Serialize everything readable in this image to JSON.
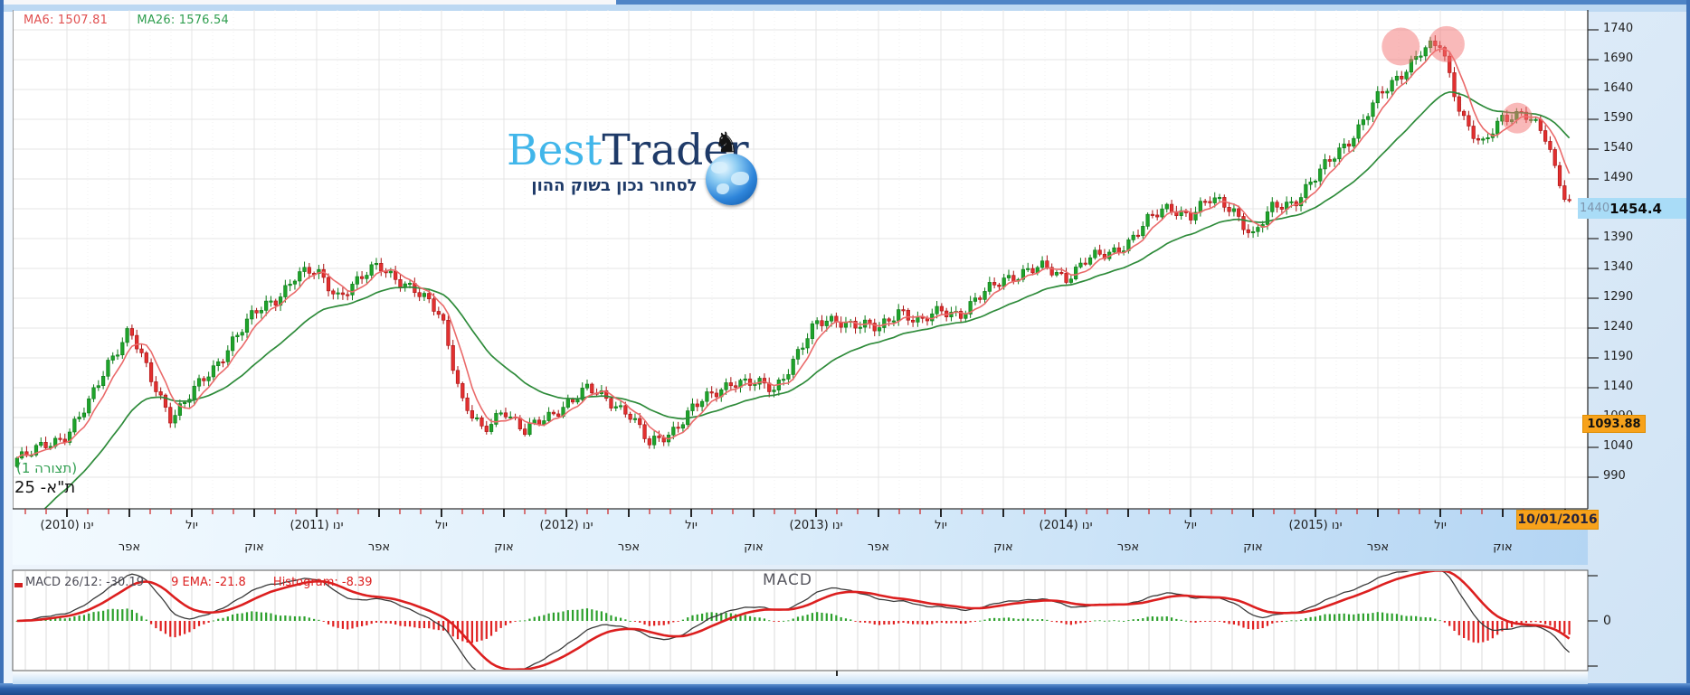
{
  "app": {
    "name": "BestTrader"
  },
  "logo": {
    "best": "Best",
    "trader": "Trader",
    "tagline": "לסחור נכון בשוק ההון"
  },
  "main_legend": {
    "ma6": "MA6: 1507.81",
    "ma26": "MA26: 1576.54"
  },
  "instrument": {
    "config": "(תצורה 1)",
    "name": "ת\"א- 25"
  },
  "price_axis": {
    "ticks": [
      990,
      1040,
      1090,
      1140,
      1190,
      1240,
      1290,
      1340,
      1390,
      1440,
      1490,
      1540,
      1590,
      1640,
      1690,
      1740
    ],
    "covered_tick": "1440",
    "last_price_label": "1454.4",
    "alert_label": "1093.88"
  },
  "time_axis": {
    "start_year": 2010,
    "years_shown": [
      2010,
      2011,
      2012,
      2013,
      2014,
      2015
    ],
    "jan": "ינו",
    "apr": "אפר",
    "jul": "יול",
    "oct": "אוק",
    "date_label": "10/01/2016"
  },
  "macd_panel": {
    "legend_macd": "MACD 26/12: -30.19",
    "legend_ema": "9 EMA: -21.8",
    "legend_histogram": "Histogram: -8.39",
    "title": "MACD",
    "zero": "0"
  },
  "colors": {
    "up_fill": "#1ea32b",
    "up_stroke": "#0b7a16",
    "down_fill": "#e23030",
    "down_stroke": "#a81010",
    "ma6": "#ea6a6a",
    "ma26": "#2e8b3a",
    "macd_line": "#3a3a3a",
    "signal_line": "#dc1f1f",
    "hist_up": "#2ca02c",
    "hist_down": "#e02020",
    "grid": "#e4e4e4",
    "grid_minor": "#efefef",
    "axis": "#333333",
    "tick_minor": "#cc2222",
    "tick_major": "#111111",
    "highlight_blue": "#a9dcf7",
    "highlight_orange": "#f7a21b",
    "annotation_circle": "rgba(244,116,116,0.5)"
  },
  "chart_data": {
    "type": "candlestick",
    "instrument": "ת\"א- 25",
    "timeframe": "weekly",
    "x_range": [
      "2009-11",
      "2016-01"
    ],
    "ylim": [
      937,
      1775
    ],
    "y_ticks": [
      990,
      1040,
      1090,
      1140,
      1190,
      1240,
      1290,
      1340,
      1390,
      1440,
      1490,
      1540,
      1590,
      1640,
      1690,
      1740
    ],
    "grid": "on",
    "anchor_first_month_offset": -2,
    "monthly_close_anchors": [
      1022,
      1046,
      1062,
      1108,
      1185,
      1238,
      1155,
      1092,
      1130,
      1168,
      1224,
      1262,
      1288,
      1330,
      1332,
      1296,
      1318,
      1345,
      1322,
      1292,
      1262,
      1118,
      1062,
      1108,
      1066,
      1086,
      1116,
      1136,
      1120,
      1100,
      1042,
      1066,
      1104,
      1126,
      1154,
      1146,
      1136,
      1194,
      1244,
      1256,
      1246,
      1236,
      1274,
      1246,
      1270,
      1266,
      1294,
      1324,
      1334,
      1340,
      1326,
      1354,
      1362,
      1386,
      1420,
      1444,
      1430,
      1454,
      1444,
      1392,
      1444,
      1454,
      1490,
      1534,
      1572,
      1624,
      1664,
      1702,
      1714,
      1602,
      1542,
      1592,
      1606,
      1560,
      1454.4
    ],
    "last_price": 1454.4,
    "last_date": "10/01/2016",
    "ma6_last": 1507.81,
    "ma26_last": 1576.54,
    "alert_level": 1093.88,
    "annotations": [
      {
        "type": "circle",
        "month": 64.1,
        "price": 1712,
        "r": 21
      },
      {
        "type": "circle",
        "month": 66.3,
        "price": 1716,
        "r": 20
      },
      {
        "type": "circle",
        "month": 69.7,
        "price": 1592,
        "r": 17
      }
    ],
    "macd": {
      "type": "line+histogram",
      "fast": 12,
      "slow": 26,
      "signal": 9,
      "last_macd": -30.19,
      "last_signal": -21.8,
      "last_histogram": -8.39,
      "ylim": [
        -52,
        52
      ],
      "zero_tick": 0
    }
  }
}
